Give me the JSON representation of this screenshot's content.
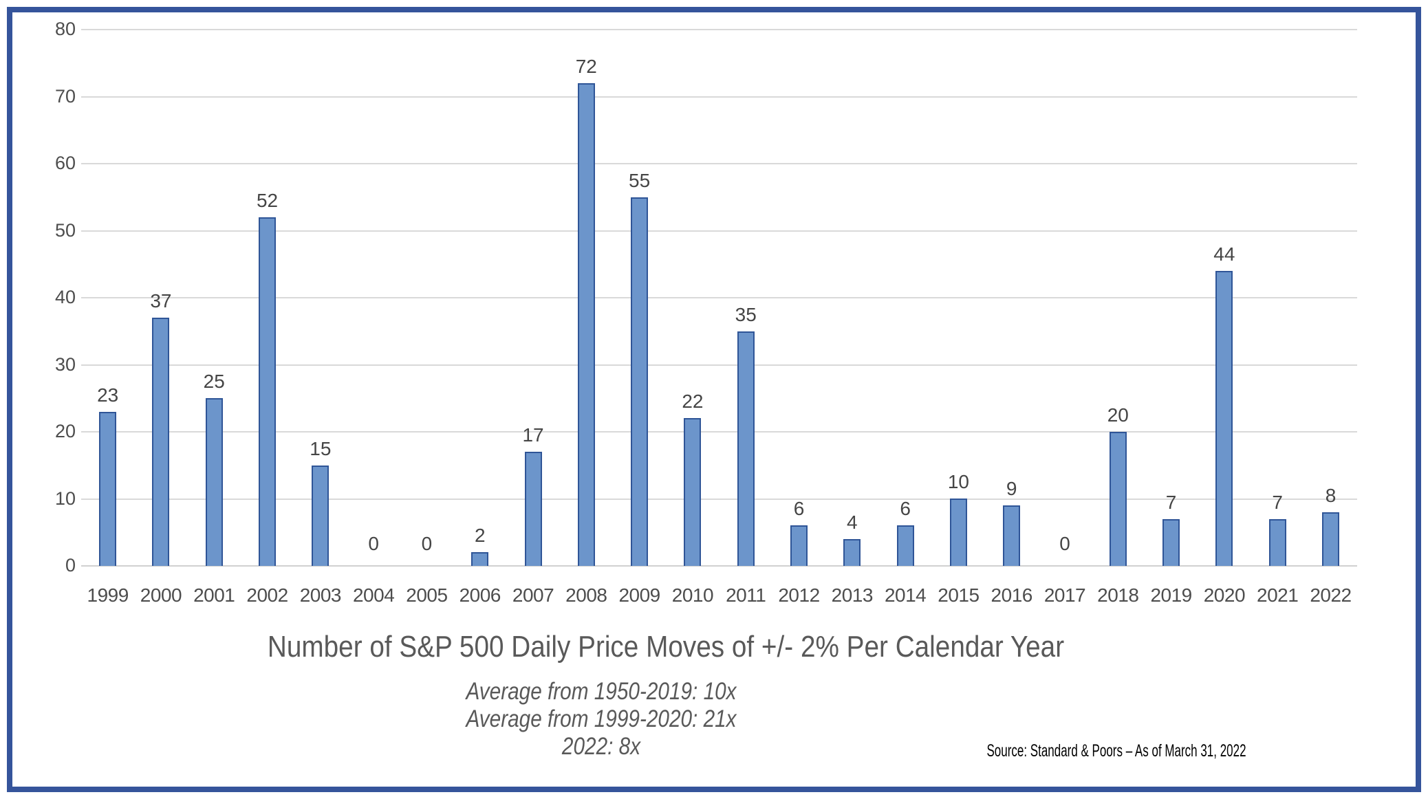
{
  "chart_data": {
    "type": "bar",
    "categories": [
      "1999",
      "2000",
      "2001",
      "2002",
      "2003",
      "2004",
      "2005",
      "2006",
      "2007",
      "2008",
      "2009",
      "2010",
      "2011",
      "2012",
      "2013",
      "2014",
      "2015",
      "2016",
      "2017",
      "2018",
      "2019",
      "2020",
      "2021",
      "2022"
    ],
    "values": [
      23,
      37,
      25,
      52,
      15,
      0,
      0,
      2,
      17,
      72,
      55,
      22,
      35,
      6,
      4,
      6,
      10,
      9,
      0,
      20,
      7,
      44,
      7,
      8
    ],
    "title": "Number of S&P 500 Daily Price Moves of +/- 2% Per Calendar Year",
    "subtitles": [
      "Average from 1950-2019: 10x",
      "Average from 1999-2020: 21x",
      "2022: 8x"
    ],
    "source": "Source: Standard & Poors – As of March 31, 2022",
    "xlabel": "",
    "ylabel": "",
    "ylim": [
      0,
      80
    ],
    "yticks": [
      0,
      10,
      20,
      30,
      40,
      50,
      60,
      70,
      80
    ],
    "grid": true,
    "legend_position": "none",
    "data_labels": true,
    "colors": {
      "bar_fill": "#6C95CB",
      "bar_border": "#2F5597",
      "gridline": "#D9D9D9",
      "frame_border": "#35549B",
      "tick_label": "#4D4D4D",
      "caption_text": "#595959",
      "source_text": "#000000"
    }
  }
}
